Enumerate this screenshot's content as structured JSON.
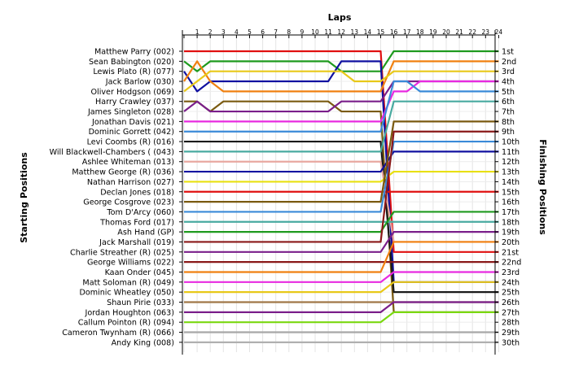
{
  "chart_data": {
    "type": "line",
    "title_top": "Laps",
    "ylabel_left": "Starting Positions",
    "ylabel_right": "Finishing Positions",
    "laps": [
      1,
      2,
      3,
      4,
      5,
      6,
      7,
      8,
      9,
      10,
      11,
      12,
      13,
      14,
      15,
      16,
      17,
      18,
      19,
      20,
      21,
      22,
      23,
      24
    ],
    "lap_tick_labels": [
      "1",
      "2",
      "3",
      "4",
      "5",
      "6",
      "7",
      "8",
      "9",
      "10",
      "11",
      "12",
      "13",
      "14",
      "15",
      "16",
      "17",
      "18",
      "19",
      "20",
      "21",
      "22",
      "23",
      "24"
    ],
    "finishing_labels": [
      "1st",
      "2nd",
      "3rd",
      "4th",
      "5th",
      "6th",
      "7th",
      "8th",
      "9th",
      "10th",
      "11th",
      "12th",
      "13th",
      "14th",
      "15th",
      "16th",
      "17th",
      "18th",
      "19th",
      "20th",
      "21st",
      "22nd",
      "23rd",
      "24th",
      "25th",
      "26th",
      "27th",
      "28th",
      "29th",
      "30th"
    ],
    "grid": true,
    "series": [
      {
        "name": "Matthew Parry (002)",
        "color": "#e01010",
        "positions": [
          1,
          1,
          1,
          1,
          1,
          1,
          1,
          1,
          1,
          1,
          1,
          1,
          1,
          1,
          1,
          1,
          21,
          21,
          21,
          21,
          21,
          21,
          21,
          21,
          21
        ]
      },
      {
        "name": "Sean Babington (020)",
        "color": "#1e9a1e",
        "positions": [
          2,
          3,
          2,
          2,
          2,
          2,
          2,
          2,
          2,
          2,
          2,
          2,
          3,
          3,
          3,
          3,
          1,
          1,
          1,
          1,
          1,
          1,
          1,
          1,
          1
        ]
      },
      {
        "name": "Lewis Plato (R) (077)",
        "color": "#1010a0",
        "positions": [
          3,
          5,
          4,
          4,
          4,
          4,
          4,
          4,
          4,
          4,
          4,
          4,
          2,
          2,
          2,
          2,
          24,
          24,
          24,
          24,
          24,
          24,
          24,
          24,
          24
        ]
      },
      {
        "name": "Jack Barlow (030)",
        "color": "#f08010",
        "positions": [
          4,
          2,
          4,
          5,
          5,
          5,
          5,
          5,
          5,
          5,
          5,
          5,
          5,
          5,
          5,
          5,
          2,
          2,
          2,
          2,
          2,
          2,
          2,
          2,
          2
        ]
      },
      {
        "name": "Oliver Hodgson (069)",
        "color": "#e8c818",
        "positions": [
          5,
          4,
          3,
          3,
          3,
          3,
          3,
          3,
          3,
          3,
          3,
          3,
          3,
          4,
          4,
          4,
          3,
          3,
          3,
          3,
          3,
          3,
          3,
          3,
          3
        ]
      },
      {
        "name": "Harry Crawley (037)",
        "color": "#7a5a10",
        "positions": [
          6,
          6,
          7,
          6,
          6,
          6,
          6,
          6,
          6,
          6,
          6,
          6,
          7,
          7,
          7,
          7,
          27,
          27,
          27,
          27,
          27,
          27,
          27,
          27,
          27
        ]
      },
      {
        "name": "James Singleton (028)",
        "color": "#7a1e8a",
        "positions": [
          7,
          6,
          7,
          7,
          7,
          7,
          7,
          7,
          7,
          7,
          7,
          7,
          6,
          6,
          6,
          6,
          4,
          4,
          4,
          4,
          4,
          4,
          4,
          4,
          4
        ]
      },
      {
        "name": "Jonathan Davis (021)",
        "color": "#e82ae0",
        "positions": [
          8,
          8,
          8,
          8,
          8,
          8,
          8,
          8,
          8,
          8,
          8,
          8,
          8,
          8,
          8,
          8,
          5,
          5,
          4,
          4,
          4,
          4,
          4,
          4,
          4
        ]
      },
      {
        "name": "Dominic Gorrett (042)",
        "color": "#3a8ad8",
        "positions": [
          9,
          9,
          9,
          9,
          9,
          9,
          9,
          9,
          9,
          9,
          9,
          9,
          9,
          9,
          9,
          9,
          4,
          4,
          5,
          5,
          5,
          5,
          5,
          5,
          5
        ]
      },
      {
        "name": "Levi Coombs (R) (016)",
        "color": "#1a1a1a",
        "positions": [
          10,
          10,
          10,
          10,
          10,
          10,
          10,
          10,
          10,
          10,
          10,
          10,
          10,
          10,
          10,
          10,
          25,
          25,
          25,
          25,
          25,
          25,
          25,
          25,
          25
        ]
      },
      {
        "name": "Will Blackwell-Chambers ( (043)",
        "color": "#48aaa0",
        "positions": [
          11,
          11,
          11,
          11,
          11,
          11,
          11,
          11,
          11,
          11,
          11,
          11,
          11,
          11,
          11,
          11,
          6,
          6,
          6,
          6,
          6,
          6,
          6,
          6,
          6
        ]
      },
      {
        "name": "Ashlee Whiteman (013)",
        "color": "#e8a8a0",
        "positions": [
          12,
          12,
          12,
          12,
          12,
          12,
          12,
          12,
          12,
          12,
          12,
          12,
          12,
          12,
          12,
          12,
          20,
          20,
          20,
          20,
          20,
          20,
          20,
          20,
          20
        ]
      },
      {
        "name": "Matthew George (R) (036)",
        "color": "#1010a0",
        "positions": [
          13,
          13,
          13,
          13,
          13,
          13,
          13,
          13,
          13,
          13,
          13,
          13,
          13,
          13,
          13,
          13,
          11,
          11,
          11,
          11,
          11,
          11,
          11,
          11,
          11
        ]
      },
      {
        "name": "Nathan Harrison (027)",
        "color": "#e8e010",
        "positions": [
          14,
          14,
          14,
          14,
          14,
          14,
          14,
          14,
          14,
          14,
          14,
          14,
          14,
          14,
          14,
          14,
          13,
          13,
          13,
          13,
          13,
          13,
          13,
          13,
          13
        ]
      },
      {
        "name": "Declan Jones (018)",
        "color": "#e01010",
        "positions": [
          15,
          15,
          15,
          15,
          15,
          15,
          15,
          15,
          15,
          15,
          15,
          15,
          15,
          15,
          15,
          15,
          15,
          15,
          15,
          15,
          15,
          15,
          15,
          15,
          15
        ]
      },
      {
        "name": "George Cosgrove (023)",
        "color": "#7a5a10",
        "positions": [
          16,
          16,
          16,
          16,
          16,
          16,
          16,
          16,
          16,
          16,
          16,
          16,
          16,
          16,
          16,
          16,
          8,
          8,
          8,
          8,
          8,
          8,
          8,
          8,
          8
        ]
      },
      {
        "name": "Tom D'Arcy (060)",
        "color": "#3a8ad8",
        "positions": [
          17,
          17,
          17,
          17,
          17,
          17,
          17,
          17,
          17,
          17,
          17,
          17,
          17,
          17,
          17,
          17,
          10,
          10,
          10,
          10,
          10,
          10,
          10,
          10,
          10
        ]
      },
      {
        "name": "Thomas Ford (017)",
        "color": "#48aaa0",
        "positions": [
          18,
          18,
          18,
          18,
          18,
          18,
          18,
          18,
          18,
          18,
          18,
          18,
          18,
          18,
          18,
          18,
          18,
          18,
          18,
          18,
          18,
          18,
          18,
          18,
          18
        ]
      },
      {
        "name": "Ash Hand (GP)",
        "color": "#1e9a1e",
        "positions": [
          19,
          19,
          19,
          19,
          19,
          19,
          19,
          19,
          19,
          19,
          19,
          19,
          19,
          19,
          19,
          19,
          17,
          17,
          17,
          17,
          17,
          17,
          17,
          17,
          17
        ]
      },
      {
        "name": "Jack Marshall (019)",
        "color": "#8a1818",
        "positions": [
          20,
          20,
          20,
          20,
          20,
          20,
          20,
          20,
          20,
          20,
          20,
          20,
          20,
          20,
          20,
          20,
          9,
          9,
          9,
          9,
          9,
          9,
          9,
          9,
          9
        ]
      },
      {
        "name": "Charlie Streather (R) (025)",
        "color": "#7a1e8a",
        "positions": [
          21,
          21,
          21,
          21,
          21,
          21,
          21,
          21,
          21,
          21,
          21,
          21,
          21,
          21,
          21,
          21,
          19,
          19,
          19,
          19,
          19,
          19,
          19,
          19,
          19
        ]
      },
      {
        "name": "George Williams (022)",
        "color": "#8a1818",
        "positions": [
          22,
          22,
          22,
          22,
          22,
          22,
          22,
          22,
          22,
          22,
          22,
          22,
          22,
          22,
          22,
          22,
          22,
          22,
          22,
          22,
          22,
          22,
          22,
          22,
          22
        ]
      },
      {
        "name": "Kaan Onder (045)",
        "color": "#f08010",
        "positions": [
          23,
          23,
          23,
          23,
          23,
          23,
          23,
          23,
          23,
          23,
          23,
          23,
          23,
          23,
          23,
          23,
          20,
          20,
          20,
          20,
          20,
          20,
          20,
          20,
          20
        ]
      },
      {
        "name": "Matt Soloman (R) (049)",
        "color": "#e82ae0",
        "positions": [
          24,
          24,
          24,
          24,
          24,
          24,
          24,
          24,
          24,
          24,
          24,
          24,
          24,
          24,
          24,
          24,
          23,
          23,
          23,
          23,
          23,
          23,
          23,
          23,
          23
        ]
      },
      {
        "name": "Dominic Wheatley (050)",
        "color": "#e8c818",
        "positions": [
          25,
          25,
          25,
          25,
          25,
          25,
          25,
          25,
          25,
          25,
          25,
          25,
          25,
          25,
          25,
          25,
          24,
          24,
          24,
          24,
          24,
          24,
          24,
          24,
          24
        ]
      },
      {
        "name": "Shaun Pirie (033)",
        "color": "#a07848",
        "positions": [
          26,
          26,
          26,
          26,
          26,
          26,
          26,
          26,
          26,
          26,
          26,
          26,
          26,
          26,
          26,
          26,
          26,
          26,
          26,
          26,
          26,
          26,
          26,
          26,
          26
        ]
      },
      {
        "name": "Jordan Houghton (063)",
        "color": "#7a1e8a",
        "positions": [
          27,
          27,
          27,
          27,
          27,
          27,
          27,
          27,
          27,
          27,
          27,
          27,
          27,
          27,
          27,
          27,
          26,
          26,
          26,
          26,
          26,
          26,
          26,
          26,
          26
        ]
      },
      {
        "name": "Callum Pointon (R) (094)",
        "color": "#7ad810",
        "positions": [
          28,
          28,
          28,
          28,
          28,
          28,
          28,
          28,
          28,
          28,
          28,
          28,
          28,
          28,
          28,
          28,
          27,
          27,
          27,
          27,
          27,
          27,
          27,
          27,
          27
        ]
      },
      {
        "name": "Cameron Twynham (R) (066)",
        "color": "#a8a8a8",
        "positions": [
          29,
          29,
          29,
          29,
          29,
          29,
          29,
          29,
          29,
          29,
          29,
          29,
          29,
          29,
          29,
          29,
          29,
          29,
          29,
          29,
          29,
          29,
          29,
          29,
          29
        ]
      },
      {
        "name": "Andy King (008)",
        "color": "#b0b0b0",
        "positions": [
          30,
          30,
          30,
          30,
          30,
          30,
          30,
          30,
          30,
          30,
          30,
          30,
          30,
          30,
          30,
          30,
          30,
          30,
          30,
          30,
          30,
          30,
          30,
          30,
          30
        ]
      }
    ]
  }
}
